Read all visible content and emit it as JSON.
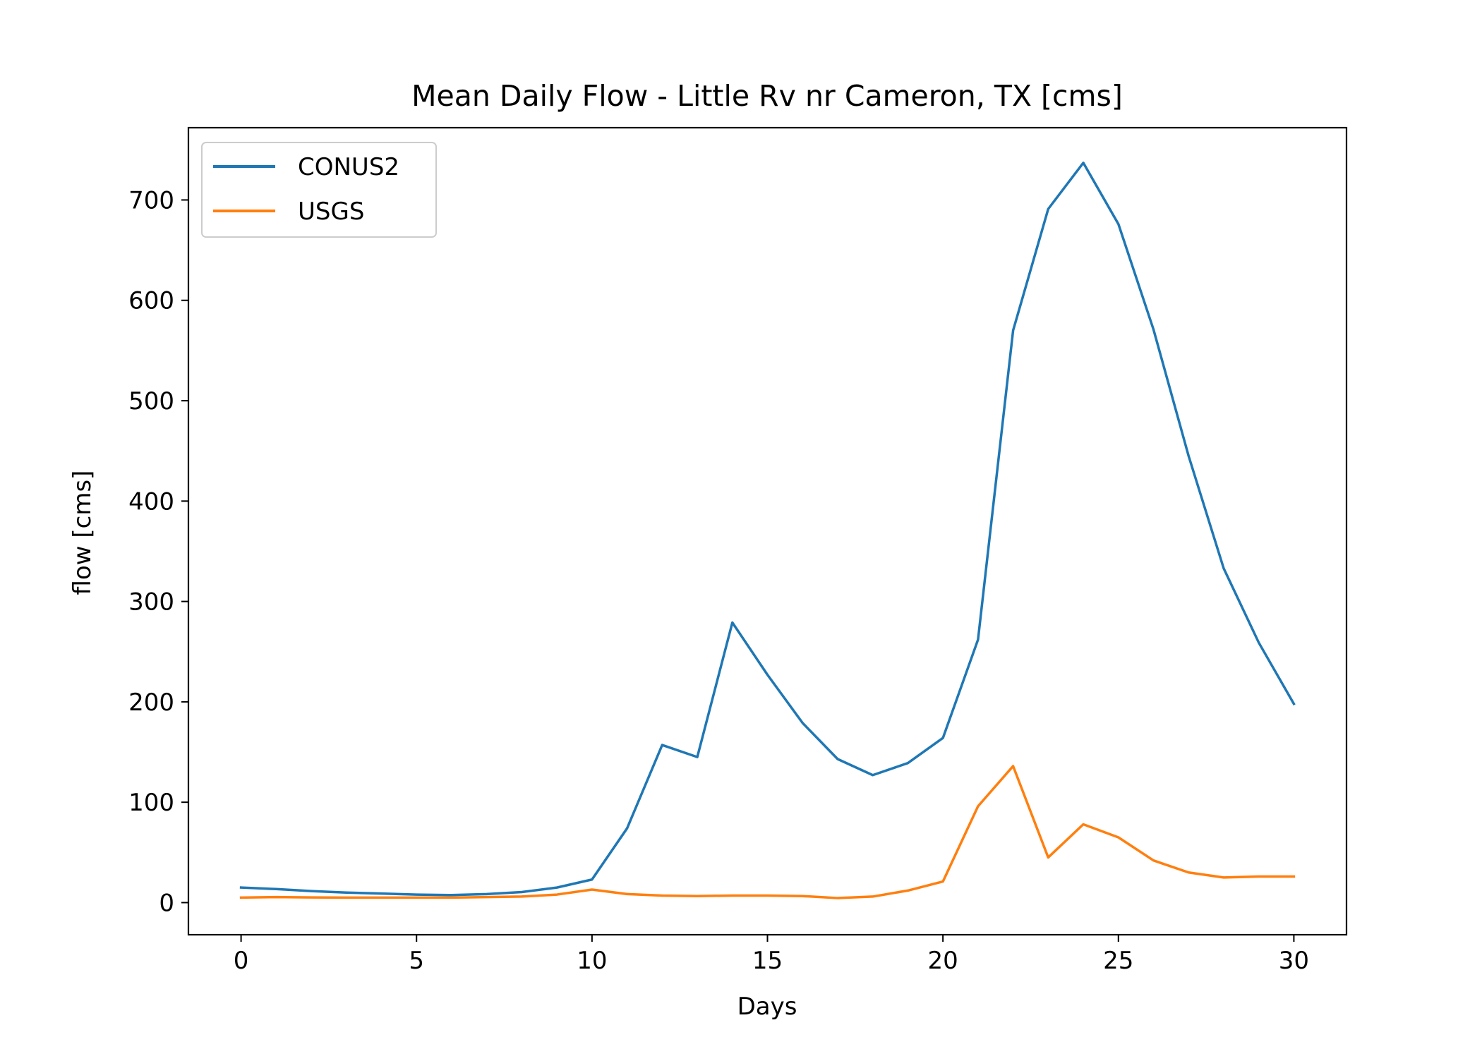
{
  "chart_data": {
    "type": "line",
    "title": "Mean Daily Flow - Little Rv nr Cameron, TX [cms]",
    "xlabel": "Days",
    "ylabel": "flow [cms]",
    "xlim": [
      -1.5,
      31.5
    ],
    "ylim": [
      -32,
      772
    ],
    "xticks": [
      0,
      5,
      10,
      15,
      20,
      25,
      30
    ],
    "yticks": [
      0,
      100,
      200,
      300,
      400,
      500,
      600,
      700
    ],
    "grid": false,
    "legend_position": "upper left",
    "x": [
      0,
      1,
      2,
      3,
      4,
      5,
      6,
      7,
      8,
      9,
      10,
      11,
      12,
      13,
      14,
      15,
      16,
      17,
      18,
      19,
      20,
      21,
      22,
      23,
      24,
      25,
      26,
      27,
      28,
      29,
      30
    ],
    "series": [
      {
        "name": "CONUS2",
        "color": "#1f77b4",
        "values": [
          15,
          13.5,
          11.5,
          10,
          9,
          8,
          7.5,
          8.5,
          10.5,
          15,
          23,
          74,
          157,
          145,
          279,
          227,
          179,
          143,
          127,
          139,
          164,
          262,
          570,
          691,
          737,
          676,
          571,
          445,
          333,
          259,
          198
        ]
      },
      {
        "name": "USGS",
        "color": "#ff7f0e",
        "values": [
          5,
          5.5,
          5.2,
          5,
          5,
          5,
          5,
          5.5,
          6,
          8,
          13,
          8.5,
          7,
          6.5,
          7,
          7,
          6.5,
          4.5,
          6,
          12,
          21,
          96,
          136,
          45,
          78,
          65,
          42,
          30,
          25,
          26,
          26
        ]
      }
    ]
  }
}
